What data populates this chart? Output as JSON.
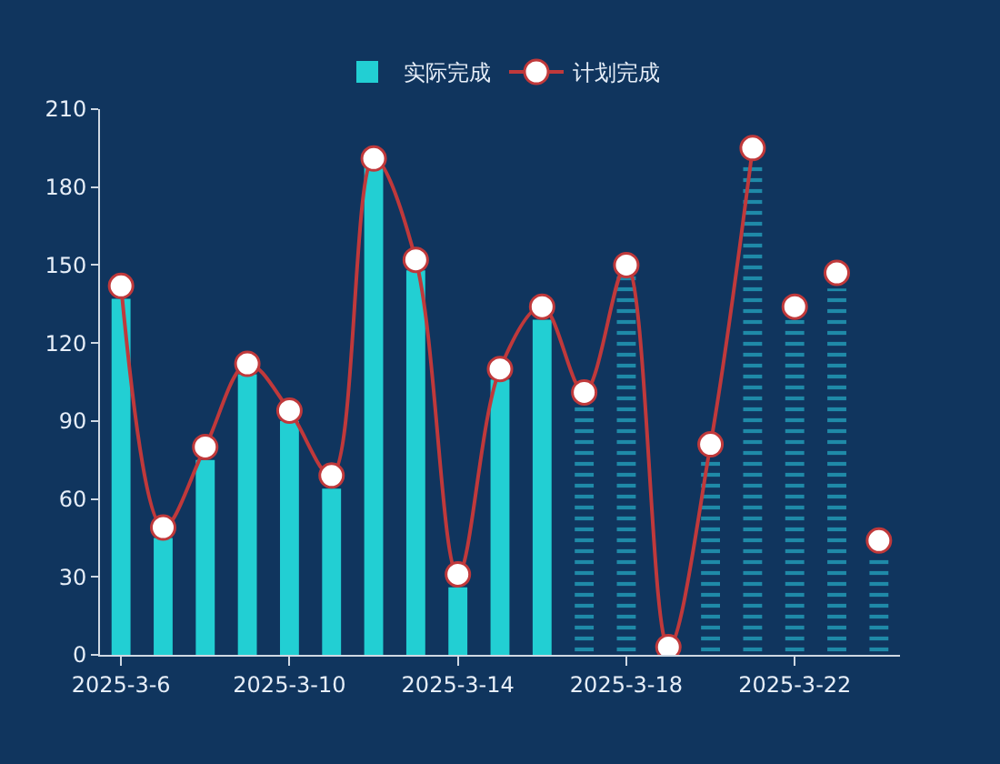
{
  "chart_data": {
    "type": "bar",
    "categories": [
      "2025-3-6",
      null,
      null,
      null,
      "2025-3-10",
      null,
      null,
      null,
      "2025-3-14",
      null,
      null,
      null,
      "2025-3-18",
      null,
      null,
      null,
      "2025-3-22",
      null,
      null
    ],
    "series": [
      {
        "name": "实际完成",
        "color": "#22cfd3",
        "values": [
          137,
          45,
          75,
          108,
          90,
          64,
          188,
          148,
          26,
          106,
          129,
          null,
          null,
          null,
          null,
          null,
          null,
          null,
          null
        ]
      },
      {
        "type": "bar",
        "color": "#1f8aa8",
        "line_style": "dashed",
        "values": [
          null,
          null,
          null,
          null,
          null,
          null,
          null,
          null,
          null,
          null,
          null,
          96,
          147,
          null,
          75,
          190,
          129,
          141,
          37
        ]
      },
      {
        "name": "计划完成",
        "type": "line",
        "color": "#c0393b",
        "marker": "circle",
        "values": [
          142,
          49,
          80,
          112,
          94,
          69,
          191,
          152,
          31,
          110,
          134,
          101,
          150,
          3,
          81,
          195,
          null,
          null,
          null
        ]
      },
      {
        "type": "scatter",
        "color": "#c0393b",
        "marker": "circle",
        "values": [
          null,
          null,
          null,
          null,
          null,
          null,
          null,
          null,
          null,
          null,
          null,
          null,
          null,
          null,
          null,
          null,
          134,
          147,
          44
        ]
      }
    ],
    "ylim": [
      0,
      210
    ],
    "yticks": [
      0,
      30,
      60,
      90,
      120,
      150,
      180,
      210
    ],
    "legend": "top"
  }
}
